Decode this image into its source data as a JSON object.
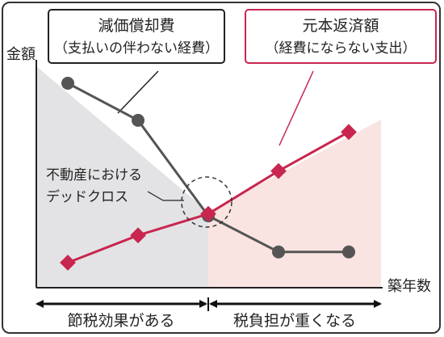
{
  "chart_data": {
    "type": "line",
    "ylabel": "金額",
    "xlabel": "築年数",
    "x": [
      1,
      2,
      3,
      4,
      5
    ],
    "series": [
      {
        "name": "減価償却費",
        "name_sub": "（支払いの伴わない経費）",
        "values": [
          10,
          8.1,
          3.2,
          1.35,
          1.35
        ],
        "color": "#555555",
        "marker": "circle"
      },
      {
        "name": "元本返済額",
        "name_sub": "（経費にならない支出）",
        "values": [
          0.8,
          2.2,
          3.3,
          5.5,
          7.5
        ],
        "color": "#c8264f",
        "marker": "diamond"
      }
    ],
    "annotation": "不動産における\nデッドクロス",
    "phases": [
      {
        "label": "節税効果がある"
      },
      {
        "label": "税負担が重くなる"
      }
    ],
    "colors": {
      "left_area": "#e3e3e5",
      "right_area": "#f9e4e2"
    }
  }
}
